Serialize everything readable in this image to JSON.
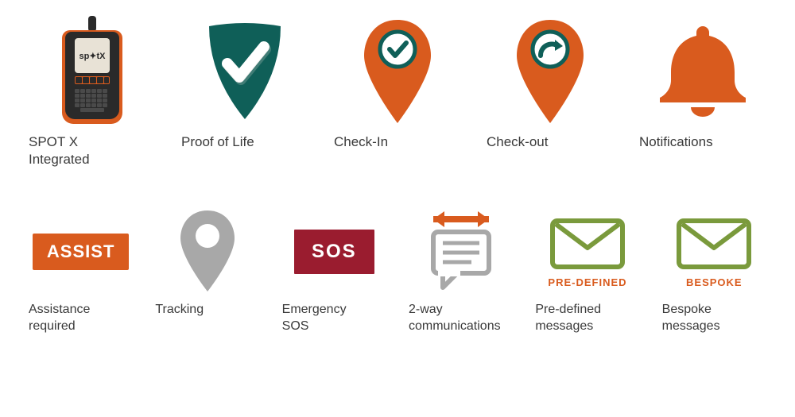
{
  "colors": {
    "orange": "#d95b1e",
    "teal": "#0f5f58",
    "gray": "#a8a8a8",
    "darkred": "#9a1c2f",
    "green": "#7a9a3c",
    "text": "#3a3a3a",
    "white": "#ffffff"
  },
  "row1": [
    {
      "label": "SPOT X\nIntegrated"
    },
    {
      "label": "Proof of Life"
    },
    {
      "label": "Check-In"
    },
    {
      "label": "Check-out"
    },
    {
      "label": "Notifications"
    }
  ],
  "row2": [
    {
      "label": "Assistance\nrequired",
      "badge": "ASSIST"
    },
    {
      "label": "Tracking"
    },
    {
      "label": "Emergency\nSOS",
      "badge": "SOS"
    },
    {
      "label": "2-way\ncommunications"
    },
    {
      "label": "Pre-defined\nmessages",
      "sublabel": "PRE-DEFINED",
      "sublabel_color": "#d95b1e"
    },
    {
      "label": "Bespoke\nmessages",
      "sublabel": "BESPOKE",
      "sublabel_color": "#d95b1e"
    }
  ]
}
